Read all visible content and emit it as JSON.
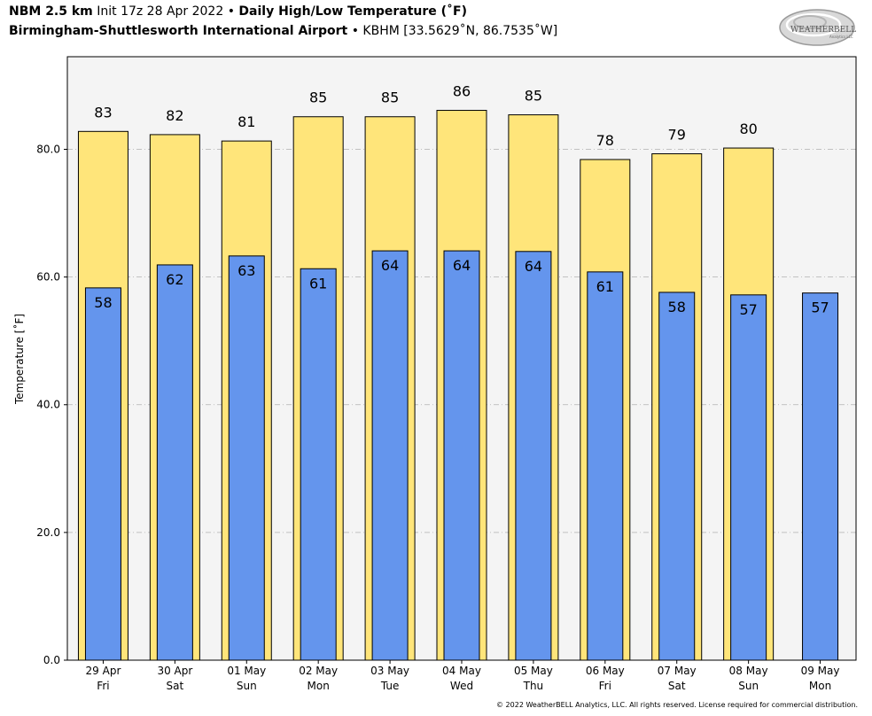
{
  "header": {
    "model": "NBM 2.5 km",
    "init": "Init 17z 28 Apr 2022",
    "sep": "•",
    "product": "Daily High/Low Temperature (˚F)",
    "station": "Birmingham-Shuttlesworth International Airport",
    "station_info": "KBHM [33.5629˚N, 86.7535˚W]"
  },
  "logo": {
    "line1": "WEATHERBELL",
    "line2": "Analytics LLC"
  },
  "footer": "© 2022 WeatherBELL Analytics, LLC. All rights reserved. License required for commercial distribution.",
  "colors": {
    "high": "#ffe57a",
    "low": "#6495ed",
    "plot_bg": "#f4f4f4",
    "grid": "#b0b0b0"
  },
  "chart_data": {
    "type": "bar",
    "categories": [
      "29 Apr",
      "30 Apr",
      "01 May",
      "02 May",
      "03 May",
      "04 May",
      "05 May",
      "06 May",
      "07 May",
      "08 May",
      "09 May"
    ],
    "days": [
      "Fri",
      "Sat",
      "Sun",
      "Mon",
      "Tue",
      "Wed",
      "Thu",
      "Fri",
      "Sat",
      "Sun",
      "Mon"
    ],
    "series": [
      {
        "values": [
          82.8,
          82.3,
          81.3,
          85.1,
          85.1,
          86.1,
          85.4,
          78.4,
          79.3,
          80.2,
          null
        ],
        "labels": [
          "83",
          "82",
          "81",
          "85",
          "85",
          "86",
          "85",
          "78",
          "79",
          "80",
          ""
        ]
      },
      {
        "values": [
          58.3,
          61.9,
          63.3,
          61.3,
          64.1,
          64.1,
          64.0,
          60.8,
          57.6,
          57.2,
          57.5
        ],
        "labels": [
          "58",
          "62",
          "63",
          "61",
          "64",
          "64",
          "64",
          "61",
          "58",
          "57",
          "57"
        ]
      }
    ],
    "ylabel": "Temperature [˚F]",
    "ylim": [
      0,
      94.5
    ],
    "yticks": [
      0,
      20,
      40,
      60,
      80
    ],
    "ytick_labels": [
      "0.0",
      "20.0",
      "40.0",
      "60.0",
      "80.0"
    ],
    "grid": true,
    "legend": "none"
  }
}
